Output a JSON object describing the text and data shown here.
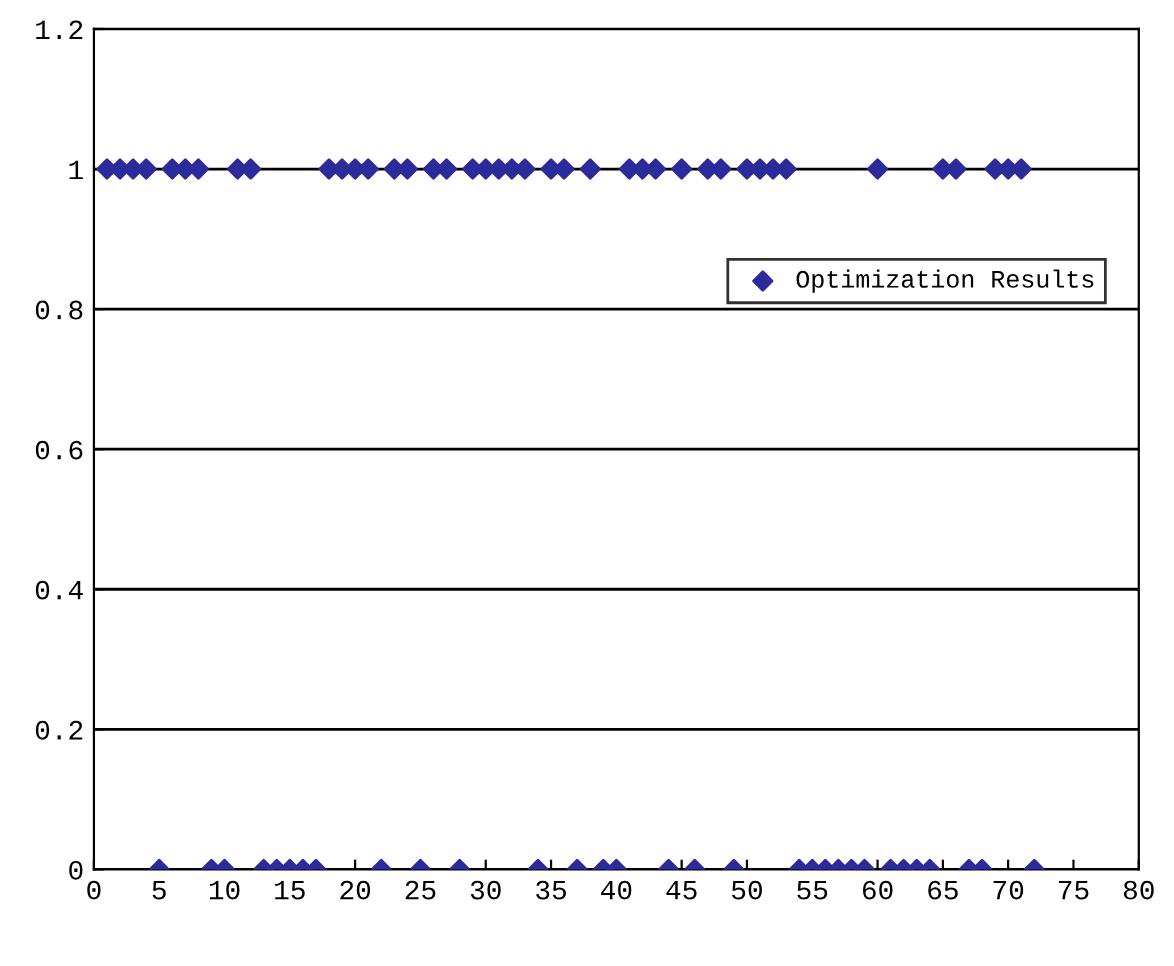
{
  "chart_data": {
    "type": "scatter",
    "x": [
      1,
      2,
      3,
      4,
      5,
      6,
      7,
      8,
      9,
      10,
      11,
      12,
      13,
      14,
      15,
      16,
      17,
      18,
      19,
      20,
      21,
      22,
      23,
      24,
      25,
      26,
      27,
      28,
      29,
      30,
      31,
      32,
      33,
      34,
      35,
      36,
      37,
      38,
      39,
      40,
      41,
      42,
      43,
      44,
      45,
      46,
      47,
      48,
      49,
      50,
      51,
      52,
      53,
      54,
      55,
      56,
      57,
      58,
      59,
      60,
      61,
      62,
      63,
      64,
      65,
      66,
      67,
      68,
      69,
      70,
      71,
      72
    ],
    "series": [
      {
        "name": "Optimization Results",
        "color": "#2b2b9c",
        "values": [
          1,
          1,
          1,
          1,
          0,
          1,
          1,
          1,
          0,
          0,
          1,
          1,
          0,
          0,
          0,
          0,
          0,
          1,
          1,
          1,
          1,
          0,
          1,
          1,
          0,
          1,
          1,
          0,
          1,
          1,
          1,
          1,
          1,
          0,
          1,
          1,
          0,
          1,
          0,
          0,
          1,
          1,
          1,
          0,
          1,
          0,
          1,
          1,
          0,
          1,
          1,
          1,
          1,
          0,
          0,
          0,
          0,
          0,
          0,
          1,
          0,
          0,
          0,
          0,
          1,
          1,
          0,
          0,
          1,
          1,
          1,
          0
        ]
      }
    ],
    "xlim": [
      0,
      80
    ],
    "xticks": [
      0,
      5,
      10,
      15,
      20,
      25,
      30,
      35,
      40,
      45,
      50,
      55,
      60,
      65,
      70,
      75,
      80
    ],
    "ylim": [
      0,
      1.2
    ],
    "yticks": [
      0,
      0.2,
      0.4,
      0.6,
      0.8,
      1,
      1.2
    ],
    "grid": "y",
    "legend": "right",
    "marker": "diamond"
  }
}
